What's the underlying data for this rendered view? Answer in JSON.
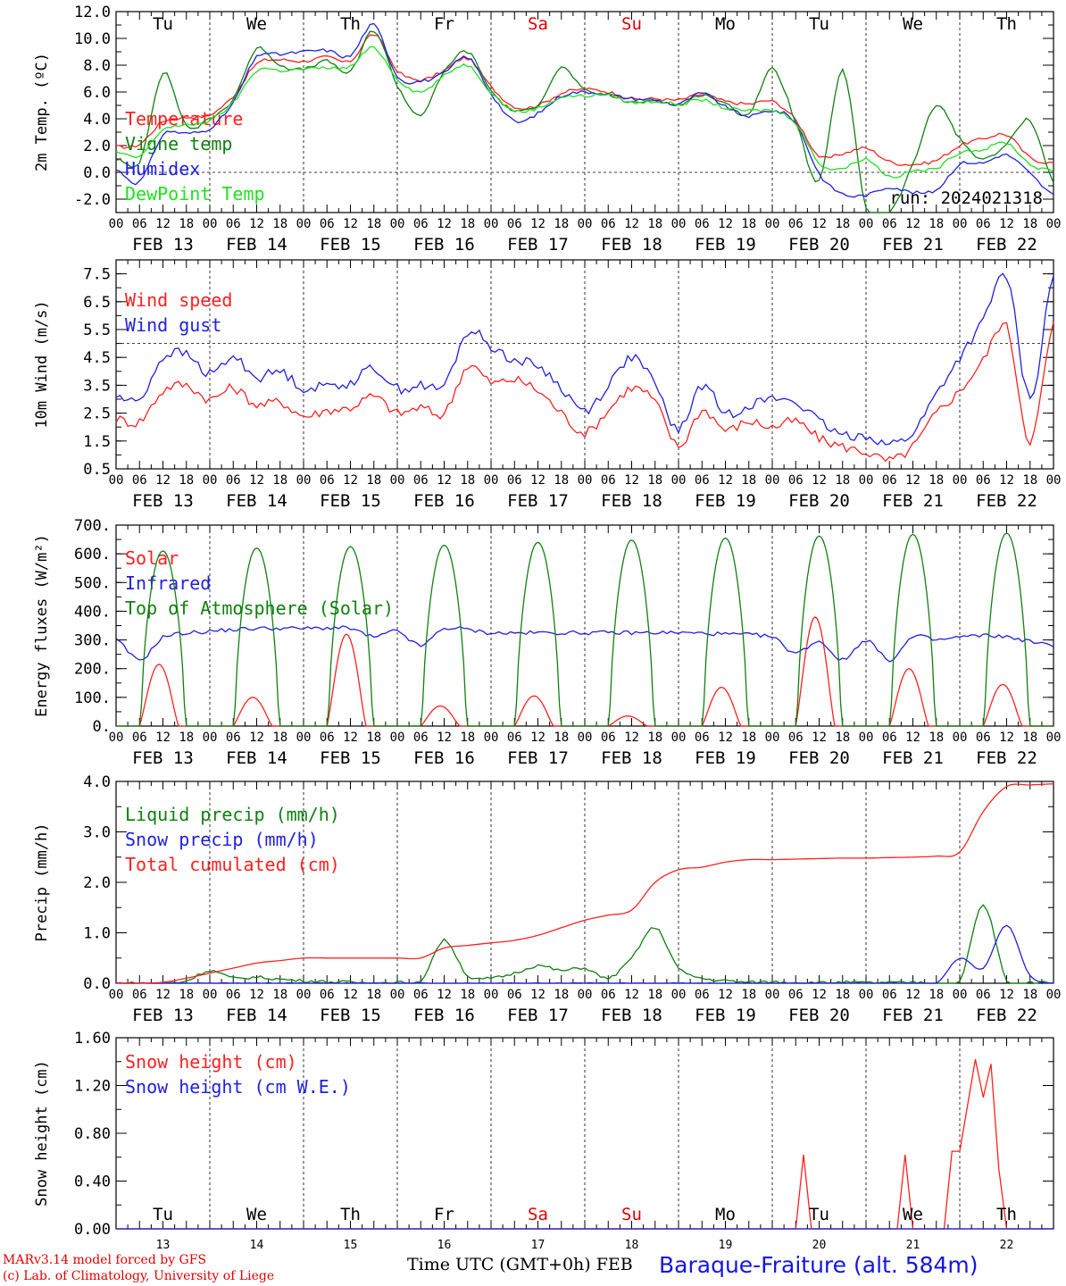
{
  "chart_data": [
    {
      "type": "line",
      "ylabel": "2m Temp. (ºC)",
      "ylim": [
        -3,
        12
      ],
      "yticks": [
        "12.0",
        "10.0",
        "8.0",
        "6.0",
        "4.0",
        "2.0",
        "0.0",
        "-2.0"
      ],
      "ytick_values": [
        12,
        10,
        8,
        6,
        4,
        2,
        0,
        -2
      ],
      "reference_line": 0,
      "annotation": "run: 2024021318",
      "day_labels": [
        "Tu",
        "We",
        "Th",
        "Fr",
        "Sa",
        "Su",
        "Mo",
        "Tu",
        "We",
        "Th"
      ],
      "day_label_colors": [
        "#000000",
        "#000000",
        "#000000",
        "#000000",
        "#e00000",
        "#e00000",
        "#000000",
        "#000000",
        "#000000",
        "#000000"
      ],
      "x_hours": [
        0,
        6,
        12,
        18,
        24,
        30,
        36,
        42,
        48,
        54,
        60,
        66,
        72,
        78,
        84,
        90,
        96,
        102,
        108,
        114,
        120,
        126,
        132,
        138,
        144,
        150,
        156,
        162,
        168,
        174,
        180,
        186,
        192,
        198,
        204,
        210,
        216,
        222,
        228,
        234,
        240
      ],
      "series": [
        {
          "name": "Temperature",
          "color": "#ff2020",
          "values": [
            1.9,
            2.1,
            3.8,
            4.1,
            4.3,
            5.7,
            8.1,
            8.4,
            8.3,
            8.6,
            8.3,
            10.3,
            7.6,
            6.9,
            7.6,
            8.5,
            6.4,
            4.9,
            5.0,
            5.9,
            6.2,
            6.0,
            5.5,
            5.5,
            5.4,
            5.8,
            5.3,
            5.1,
            5.3,
            3.9,
            1.2,
            1.4,
            1.8,
            0.8,
            0.6,
            0.9,
            2.0,
            2.5,
            2.8,
            1.1,
            0.7
          ]
        },
        {
          "name": "Vigne temp",
          "color": "#108010",
          "values": [
            1.0,
            0.8,
            7.4,
            3.5,
            4.0,
            5.5,
            9.2,
            8.0,
            7.7,
            8.3,
            7.5,
            10.6,
            6.5,
            4.3,
            7.5,
            9.0,
            6.1,
            4.6,
            5.1,
            7.8,
            6.1,
            5.8,
            5.2,
            5.4,
            5.0,
            5.8,
            5.1,
            4.4,
            7.7,
            3.8,
            -0.7,
            7.6,
            -2.6,
            -3.0,
            0.6,
            5.0,
            2.5,
            1.0,
            2.1,
            3.9,
            -0.7
          ]
        },
        {
          "name": "Humidex",
          "color": "#2020e0",
          "values": [
            0.2,
            -0.7,
            2.8,
            2.9,
            3.3,
            5.2,
            8.6,
            8.8,
            9.0,
            9.1,
            8.7,
            11.0,
            7.2,
            6.8,
            7.4,
            8.6,
            5.9,
            3.8,
            4.4,
            5.7,
            6.0,
            5.8,
            5.5,
            5.4,
            5.1,
            5.9,
            4.9,
            4.2,
            4.6,
            3.7,
            -0.1,
            -1.6,
            -1.7,
            -1.1,
            -1.5,
            -1.3,
            0.6,
            0.7,
            1.3,
            -0.1,
            -1.7
          ]
        },
        {
          "name": "DewPoint Temp",
          "color": "#20e020",
          "values": [
            1.5,
            1.2,
            3.2,
            3.5,
            3.9,
            5.2,
            7.6,
            7.6,
            7.7,
            7.8,
            7.9,
            9.3,
            7.0,
            6.0,
            7.2,
            8.0,
            6.0,
            4.6,
            4.8,
            5.6,
            5.7,
            5.8,
            5.2,
            5.3,
            5.1,
            5.4,
            4.8,
            4.6,
            4.6,
            3.7,
            0.7,
            0.3,
            1.0,
            -0.3,
            0.1,
            0.3,
            1.5,
            1.7,
            2.2,
            0.6,
            0.1
          ]
        }
      ]
    },
    {
      "type": "line",
      "ylabel": "10m Wind (m/s)",
      "ylim": [
        0.5,
        8.0
      ],
      "yticks": [
        "7.5",
        "6.5",
        "5.5",
        "4.5",
        "3.5",
        "2.5",
        "1.5",
        "0.5"
      ],
      "ytick_values": [
        7.5,
        6.5,
        5.5,
        4.5,
        3.5,
        2.5,
        1.5,
        0.5
      ],
      "reference_line": 5.0,
      "x_hours": [
        0,
        6,
        12,
        18,
        24,
        30,
        36,
        42,
        48,
        54,
        60,
        66,
        72,
        78,
        84,
        90,
        96,
        102,
        108,
        114,
        120,
        126,
        132,
        138,
        144,
        150,
        156,
        162,
        168,
        174,
        180,
        186,
        192,
        198,
        204,
        210,
        216,
        222,
        228,
        234,
        240
      ],
      "series": [
        {
          "name": "Wind speed",
          "color": "#ff2020",
          "values": [
            2.3,
            2.2,
            3.3,
            3.5,
            3.0,
            3.4,
            2.8,
            2.9,
            2.4,
            2.6,
            2.7,
            3.1,
            2.5,
            2.7,
            2.5,
            4.2,
            3.6,
            3.7,
            3.3,
            2.5,
            1.8,
            2.6,
            3.4,
            2.9,
            1.3,
            2.6,
            1.9,
            2.2,
            2.0,
            2.2,
            1.6,
            1.3,
            1.1,
            0.8,
            1.3,
            2.5,
            3.3,
            4.4,
            5.6,
            1.5,
            5.7
          ]
        },
        {
          "name": "Wind gust",
          "color": "#2020e0",
          "values": [
            3.1,
            3.0,
            4.5,
            4.6,
            3.9,
            4.5,
            3.8,
            4.0,
            3.4,
            3.5,
            3.6,
            4.1,
            3.4,
            3.5,
            3.5,
            5.4,
            4.9,
            4.4,
            4.2,
            3.4,
            2.6,
            3.5,
            4.5,
            3.5,
            1.9,
            3.5,
            2.5,
            2.8,
            3.0,
            2.9,
            2.2,
            1.7,
            1.7,
            1.4,
            1.8,
            3.2,
            4.5,
            5.8,
            7.4,
            3.0,
            7.5
          ]
        }
      ]
    },
    {
      "type": "line",
      "ylabel": "Energy fluxes (W/m²)",
      "ylim": [
        0,
        700
      ],
      "yticks": [
        "700.",
        "600.",
        "500.",
        "400.",
        "300.",
        "200.",
        "100.",
        "0."
      ],
      "ytick_values": [
        700,
        600,
        500,
        400,
        300,
        200,
        100,
        0
      ],
      "series": [
        {
          "name": "Solar",
          "color": "#ff2020",
          "daily_peak_values": [
            215,
            100,
            320,
            70,
            105,
            35,
            135,
            380,
            200,
            145
          ]
        },
        {
          "name": "Infrared",
          "color": "#2020e0",
          "x_hours": [
            0,
            6,
            12,
            24,
            36,
            48,
            60,
            66,
            72,
            78,
            84,
            96,
            108,
            120,
            132,
            144,
            156,
            168,
            174,
            180,
            186,
            192,
            198,
            204,
            210,
            216,
            222,
            228,
            240
          ],
          "values": [
            300,
            230,
            310,
            330,
            340,
            340,
            340,
            310,
            330,
            280,
            340,
            325,
            325,
            325,
            325,
            325,
            320,
            310,
            255,
            295,
            230,
            300,
            230,
            310,
            300,
            310,
            315,
            310,
            280
          ]
        },
        {
          "name": "Top of Atmosphere (Solar)",
          "color": "#108010",
          "daily_peak_values": [
            610,
            620,
            625,
            630,
            640,
            648,
            655,
            662,
            668,
            672
          ]
        }
      ]
    },
    {
      "type": "line",
      "ylabel": "Precip (mm/h)",
      "ylim": [
        0,
        4
      ],
      "yticks": [
        "4.0",
        "3.0",
        "2.0",
        "1.0",
        "0.0"
      ],
      "ytick_values": [
        4,
        3,
        2,
        1,
        0
      ],
      "x_hours": [
        0,
        6,
        12,
        18,
        24,
        30,
        36,
        42,
        48,
        54,
        60,
        66,
        72,
        78,
        84,
        90,
        96,
        102,
        108,
        114,
        120,
        126,
        132,
        138,
        144,
        150,
        156,
        162,
        168,
        174,
        180,
        186,
        192,
        198,
        204,
        210,
        216,
        222,
        228,
        234,
        240
      ],
      "series": [
        {
          "name": "Liquid precip (mm/h)",
          "color": "#108010",
          "values": [
            0,
            0,
            0,
            0.05,
            0.25,
            0.1,
            0.12,
            0.08,
            0.05,
            0.03,
            0.02,
            0.01,
            0.02,
            0.05,
            0.85,
            0.15,
            0.1,
            0.2,
            0.35,
            0.25,
            0.3,
            0.1,
            0.5,
            1.1,
            0.3,
            0.1,
            0.05,
            0.02,
            0.03,
            0.02,
            0.01,
            0.02,
            0.01,
            0.01,
            0.02,
            0.01,
            0.02,
            1.55,
            0.05,
            0.02,
            0.01
          ]
        },
        {
          "name": "Snow precip (mm/h)",
          "color": "#2020e0",
          "values": [
            0,
            0,
            0,
            0,
            0,
            0,
            0,
            0,
            0,
            0,
            0,
            0,
            0,
            0,
            0,
            0,
            0,
            0,
            0,
            0,
            0,
            0,
            0,
            0,
            0,
            0,
            0,
            0,
            0,
            0,
            0,
            0,
            0,
            0,
            0,
            0,
            0.5,
            0.3,
            1.15,
            0.15,
            0
          ]
        },
        {
          "name": "Total cumulated (cm)",
          "color": "#ff2020",
          "values": [
            0,
            0,
            0.02,
            0.1,
            0.2,
            0.3,
            0.4,
            0.45,
            0.5,
            0.5,
            0.5,
            0.5,
            0.5,
            0.5,
            0.7,
            0.75,
            0.8,
            0.85,
            0.95,
            1.1,
            1.25,
            1.35,
            1.45,
            2.0,
            2.25,
            2.3,
            2.4,
            2.45,
            2.45,
            2.46,
            2.47,
            2.48,
            2.48,
            2.49,
            2.5,
            2.52,
            2.6,
            3.4,
            3.9,
            3.93,
            3.95
          ]
        }
      ]
    },
    {
      "type": "line",
      "ylabel": "Snow height (cm)",
      "ylim": [
        0,
        1.6
      ],
      "yticks": [
        "1.60",
        "1.20",
        "0.80",
        "0.40",
        "0.00"
      ],
      "ytick_values": [
        1.6,
        1.2,
        0.8,
        0.4,
        0
      ],
      "day_labels": [
        "Tu",
        "We",
        "Th",
        "Fr",
        "Sa",
        "Su",
        "Mo",
        "Tu",
        "We",
        "Th"
      ],
      "day_label_colors": [
        "#000000",
        "#000000",
        "#000000",
        "#000000",
        "#e00000",
        "#e00000",
        "#000000",
        "#000000",
        "#000000",
        "#000000"
      ],
      "bottom_day_numbers": [
        "13",
        "14",
        "15",
        "16",
        "17",
        "18",
        "19",
        "20",
        "21",
        "22"
      ],
      "series": [
        {
          "name": "Snow height (cm)",
          "color": "#ff2020",
          "x_hours": [
            0,
            174,
            176,
            178,
            200,
            202,
            204,
            212,
            214,
            216,
            220,
            222,
            224,
            226,
            228,
            230,
            240
          ],
          "values": [
            0,
            0,
            0.62,
            0,
            0,
            0.62,
            0,
            0,
            0.65,
            0.65,
            1.42,
            1.1,
            1.38,
            0.5,
            0,
            0,
            0
          ]
        },
        {
          "name": "Snow height (cm W.E.)",
          "color": "#2020e0",
          "x_hours": [
            0,
            240
          ],
          "values": [
            0,
            0
          ]
        }
      ]
    }
  ],
  "x_axis": {
    "hour_ticks": [
      "00",
      "06",
      "12",
      "18"
    ],
    "date_labels": [
      "FEB 13",
      "FEB 14",
      "FEB 15",
      "FEB 16",
      "FEB 17",
      "FEB 18",
      "FEB 19",
      "FEB 20",
      "FEB 21",
      "FEB 22"
    ]
  },
  "footer": {
    "credit_line1": "MARv3.14 model forced by GFS",
    "credit_line2": "(c) Lab. of Climatology, University of Liege",
    "xlabel": "Time UTC (GMT+0h) FEB",
    "station": "Baraque-Fraiture (alt. 584m)"
  }
}
